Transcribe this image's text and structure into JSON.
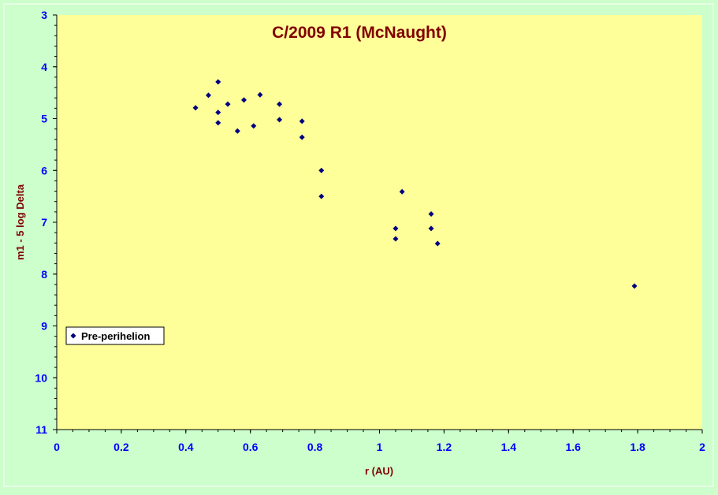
{
  "colors": {
    "background": "#ccffcc",
    "plot_area": "#ffff99",
    "title": "#800000",
    "axis_label": "#800000",
    "tick_label": "#0000ff",
    "marker": "#000080"
  },
  "chart_data": {
    "type": "scatter",
    "title": "C/2009 R1 (McNaught)",
    "xlabel": "r (AU)",
    "ylabel": "m1 - 5 log Delta",
    "xlim": [
      0,
      2
    ],
    "ylim": [
      3,
      11
    ],
    "y_inverted": true,
    "grid": false,
    "legend_position": "bottom-left",
    "x_ticks": [
      "0",
      "0.2",
      "0.4",
      "0.6",
      "0.8",
      "1",
      "1.2",
      "1.4",
      "1.6",
      "1.8",
      "2"
    ],
    "y_ticks": [
      "3",
      "4",
      "5",
      "6",
      "7",
      "8",
      "9",
      "10",
      "11"
    ],
    "series": [
      {
        "name": "Pre-perihelion",
        "marker": "diamond",
        "points": [
          {
            "x": 0.43,
            "y": 4.79
          },
          {
            "x": 0.47,
            "y": 4.55
          },
          {
            "x": 0.5,
            "y": 4.29
          },
          {
            "x": 0.5,
            "y": 4.88
          },
          {
            "x": 0.5,
            "y": 5.08
          },
          {
            "x": 0.53,
            "y": 4.72
          },
          {
            "x": 0.56,
            "y": 5.24
          },
          {
            "x": 0.58,
            "y": 4.64
          },
          {
            "x": 0.61,
            "y": 5.14
          },
          {
            "x": 0.63,
            "y": 4.54
          },
          {
            "x": 0.69,
            "y": 4.72
          },
          {
            "x": 0.69,
            "y": 5.02
          },
          {
            "x": 0.76,
            "y": 5.05
          },
          {
            "x": 0.76,
            "y": 5.36
          },
          {
            "x": 0.82,
            "y": 6.0
          },
          {
            "x": 0.82,
            "y": 6.5
          },
          {
            "x": 1.05,
            "y": 7.12
          },
          {
            "x": 1.05,
            "y": 7.32
          },
          {
            "x": 1.07,
            "y": 6.41
          },
          {
            "x": 1.16,
            "y": 6.84
          },
          {
            "x": 1.16,
            "y": 7.12
          },
          {
            "x": 1.18,
            "y": 7.41
          },
          {
            "x": 1.79,
            "y": 8.23
          }
        ]
      }
    ]
  }
}
